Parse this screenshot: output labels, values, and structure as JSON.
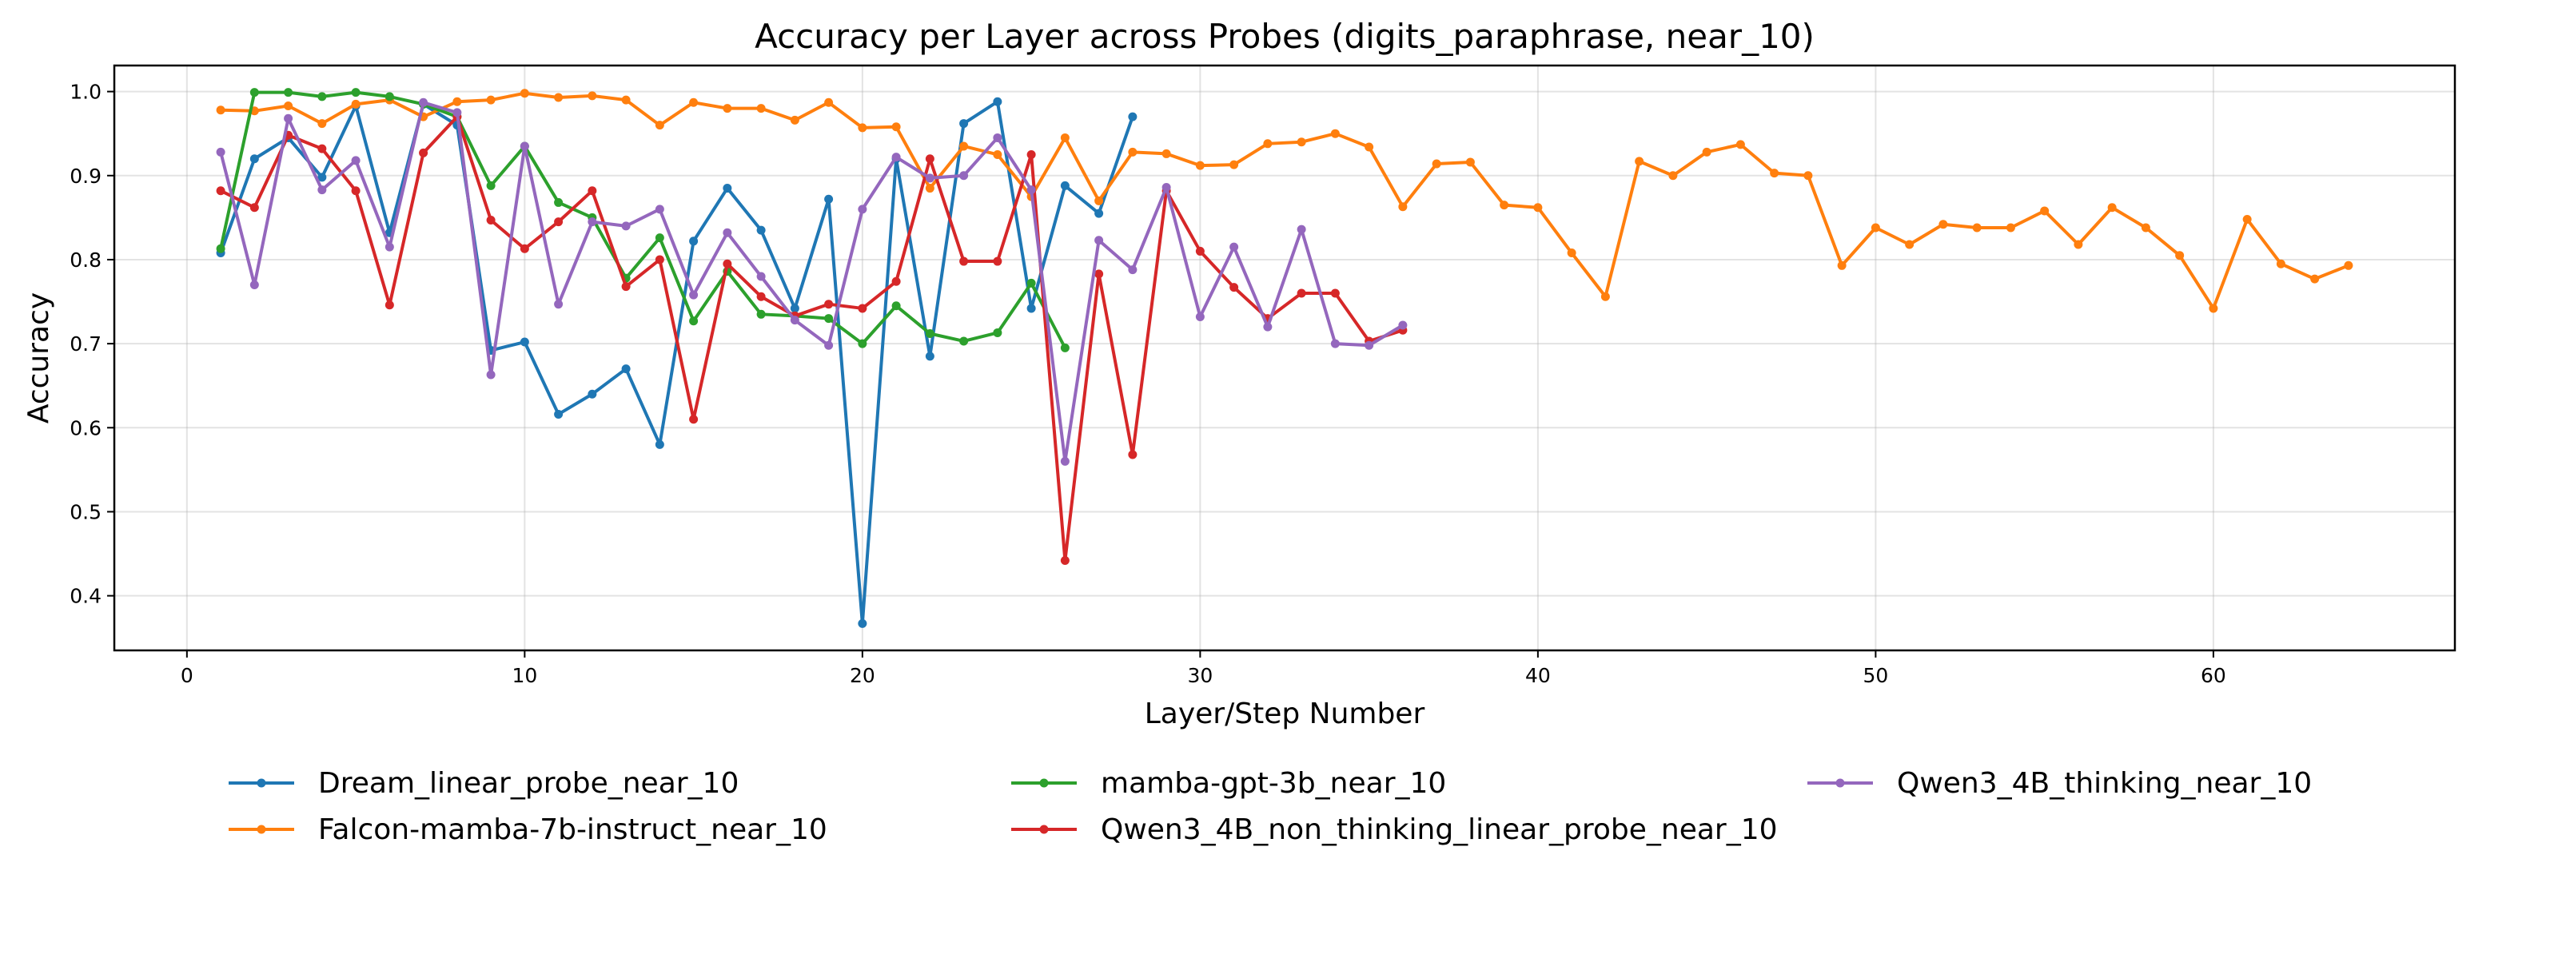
{
  "chart_data": {
    "type": "line",
    "title": "Accuracy per Layer across Probes (digits_paraphrase, near_10)",
    "xlabel": "Layer/Step Number",
    "ylabel": "Accuracy",
    "xlim": [
      -2.15,
      67.15
    ],
    "ylim": [
      0.335,
      1.031
    ],
    "xticks": [
      0,
      10,
      20,
      30,
      40,
      50,
      60
    ],
    "yticks": [
      0.4,
      0.5,
      0.6,
      0.7,
      0.8,
      0.9,
      1.0
    ],
    "ytick_labels": [
      "0.4",
      "0.5",
      "0.6",
      "0.7",
      "0.8",
      "0.9",
      "1.0"
    ],
    "grid": true,
    "legend_placement": "bottom",
    "series": [
      {
        "name": "Dream_linear_probe_near_10",
        "color": "#1f77b4",
        "values": [
          0.808,
          0.92,
          0.945,
          0.898,
          0.983,
          0.832,
          0.985,
          0.96,
          0.692,
          0.702,
          0.616,
          0.64,
          0.67,
          0.58,
          0.822,
          0.885,
          0.835,
          0.742,
          0.872,
          0.367,
          0.92,
          0.685,
          0.962,
          0.988,
          0.742,
          0.888,
          0.855,
          0.97
        ]
      },
      {
        "name": "Falcon-mamba-7b-instruct_near_10",
        "color": "#ff7f0e",
        "values": [
          0.978,
          0.977,
          0.983,
          0.962,
          0.985,
          0.99,
          0.97,
          0.988,
          0.99,
          0.998,
          0.993,
          0.995,
          0.99,
          0.96,
          0.987,
          0.98,
          0.98,
          0.966,
          0.987,
          0.957,
          0.958,
          0.885,
          0.935,
          0.925,
          0.875,
          0.945,
          0.87,
          0.928,
          0.926,
          0.912,
          0.913,
          0.938,
          0.94,
          0.95,
          0.934,
          0.863,
          0.914,
          0.916,
          0.865,
          0.862,
          0.808,
          0.756,
          0.917,
          0.9,
          0.928,
          0.937,
          0.903,
          0.9,
          0.793,
          0.838,
          0.818,
          0.842,
          0.838,
          0.838,
          0.858,
          0.818,
          0.862,
          0.838,
          0.805,
          0.742,
          0.848,
          0.795,
          0.777,
          0.793
        ]
      },
      {
        "name": "mamba-gpt-3b_near_10",
        "color": "#2ca02c",
        "values": [
          0.813,
          0.999,
          0.999,
          0.994,
          0.999,
          0.994,
          0.985,
          0.97,
          0.888,
          0.935,
          0.868,
          0.85,
          0.778,
          0.826,
          0.727,
          0.786,
          0.735,
          0.733,
          0.73,
          0.7,
          0.745,
          0.712,
          0.703,
          0.713,
          0.772,
          0.695
        ]
      },
      {
        "name": "Qwen3_4B_non_thinking_linear_probe_near_10",
        "color": "#d62728",
        "values": [
          0.882,
          0.862,
          0.948,
          0.932,
          0.882,
          0.746,
          0.927,
          0.97,
          0.847,
          0.813,
          0.845,
          0.882,
          0.768,
          0.8,
          0.61,
          0.795,
          0.756,
          0.733,
          0.747,
          0.742,
          0.774,
          0.92,
          0.798,
          0.798,
          0.925,
          0.442,
          0.783,
          0.568,
          0.882,
          0.81,
          0.767,
          0.73,
          0.76,
          0.76,
          0.703,
          0.716
        ]
      },
      {
        "name": "Qwen3_4B_thinking_near_10",
        "color": "#9467bd",
        "values": [
          0.928,
          0.77,
          0.968,
          0.883,
          0.918,
          0.815,
          0.987,
          0.975,
          0.663,
          0.935,
          0.747,
          0.845,
          0.84,
          0.86,
          0.758,
          0.832,
          0.78,
          0.728,
          0.698,
          0.86,
          0.922,
          0.897,
          0.9,
          0.945,
          0.883,
          0.56,
          0.823,
          0.788,
          0.886,
          0.732,
          0.815,
          0.72,
          0.836,
          0.7,
          0.698,
          0.722
        ]
      }
    ]
  }
}
